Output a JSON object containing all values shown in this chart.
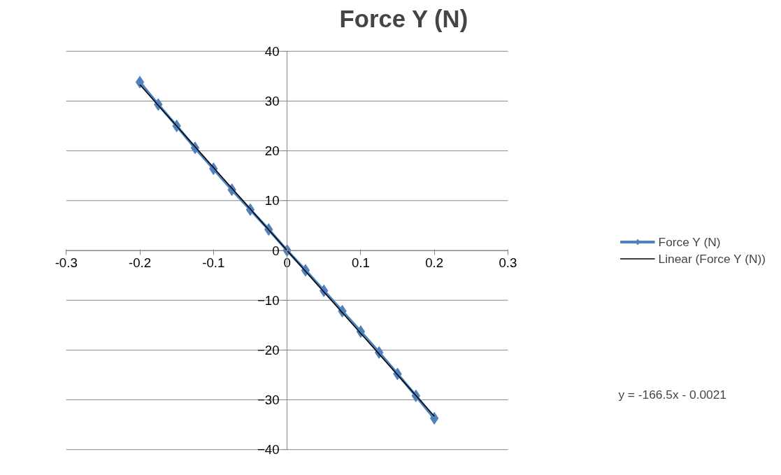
{
  "chart_data": {
    "type": "line",
    "title": "Force Y (N)",
    "x": [
      -0.2,
      -0.175,
      -0.15,
      -0.125,
      -0.1,
      -0.075,
      -0.05,
      -0.025,
      0,
      0.025,
      0.05,
      0.075,
      0.1,
      0.125,
      0.15,
      0.175,
      0.2
    ],
    "series": [
      {
        "name": "Force Y (N)",
        "color": "#4f81bd",
        "marker": "diamond",
        "values": [
          33.8,
          29.3,
          25.0,
          20.6,
          16.4,
          12.2,
          8.2,
          4.2,
          0,
          -4.0,
          -8.1,
          -12.2,
          -16.3,
          -20.5,
          -24.8,
          -29.2,
          -33.7
        ]
      },
      {
        "name": "Linear (Force Y (N))",
        "color": "#000000",
        "marker": "none",
        "x": [
          -0.2,
          0.2
        ],
        "values": [
          33.3,
          -33.3
        ]
      }
    ],
    "xlim": [
      -0.3,
      0.3
    ],
    "xticks": [
      -0.3,
      -0.2,
      -0.1,
      0,
      0.1,
      0.2,
      0.3
    ],
    "ylim": [
      -40,
      40
    ],
    "yticks": [
      -40,
      -30,
      -20,
      -10,
      0,
      10,
      20,
      30,
      40
    ],
    "grid": "y",
    "legend": "right",
    "line_style": "solid",
    "annotations": [
      "y = -166.5x - 0.0021"
    ]
  }
}
